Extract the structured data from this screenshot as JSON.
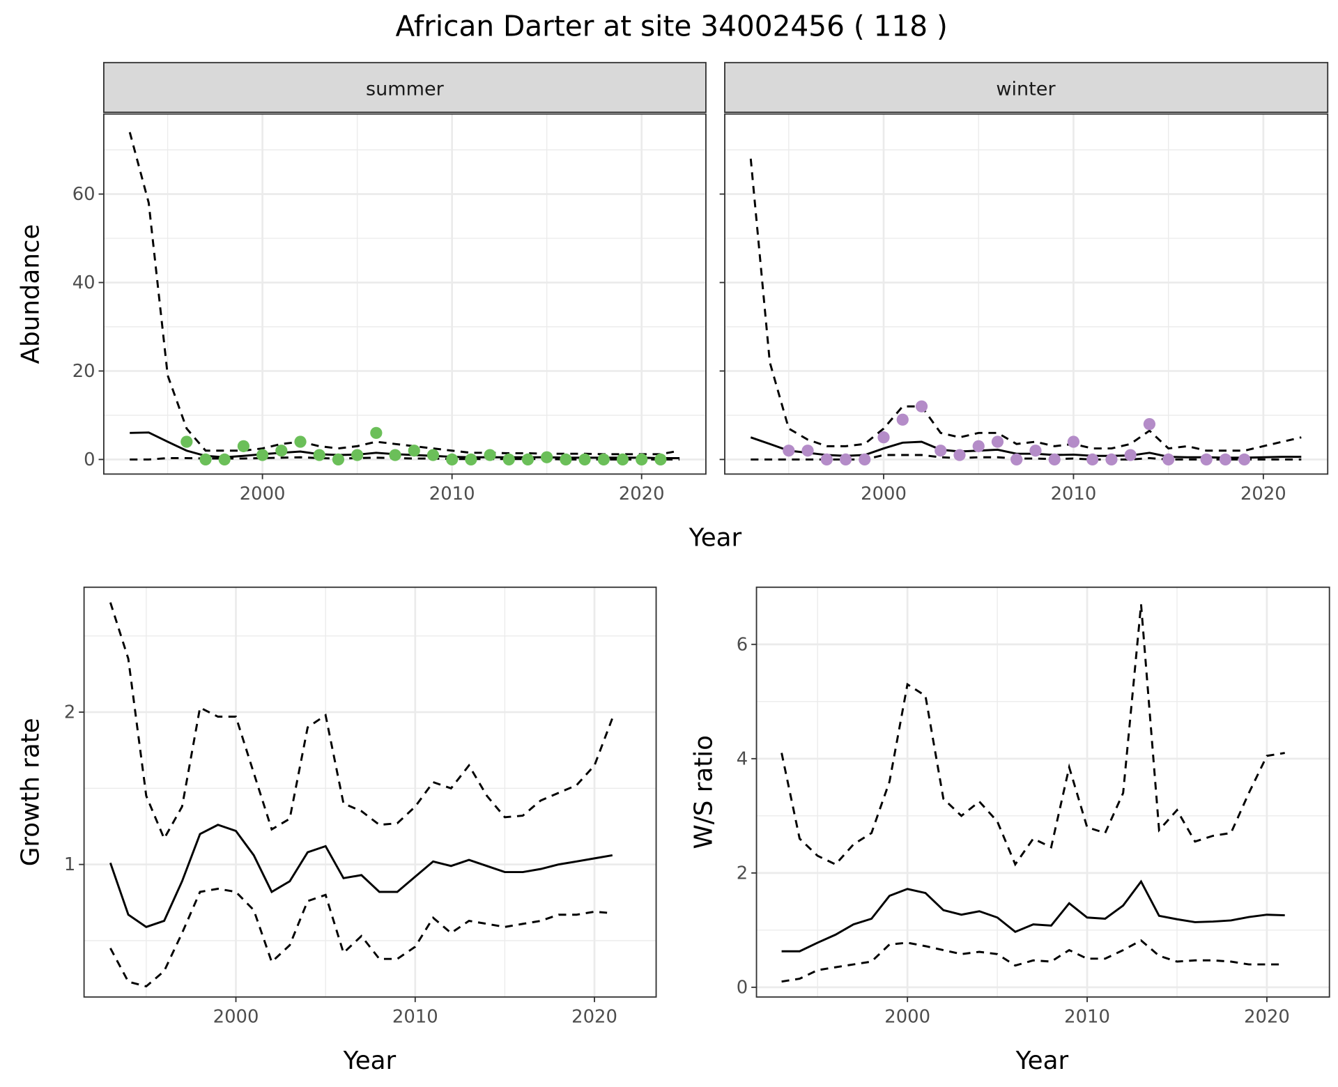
{
  "title": "African Darter at site 34002456 ( 118 )",
  "shared_xlabel": "Year",
  "colors": {
    "summer_points": "#6BBF59",
    "winter_points": "#B48CC8",
    "lines": "#000000",
    "strip_bg": "#D9D9D9",
    "grid": "#EBEBEB"
  },
  "chart_data": [
    {
      "type": "line+scatter",
      "facet": "summer",
      "ylabel": "Abundance",
      "xlabel": "",
      "xlim": [
        1991.63,
        2023.39
      ],
      "ylim": [
        -3.3,
        78.1
      ],
      "xticks": [
        2000,
        2010,
        2020
      ],
      "yticks": [
        0,
        20,
        40,
        60
      ],
      "grid": true,
      "years": [
        1993,
        1994,
        1995,
        1996,
        1997,
        1998,
        1999,
        2000,
        2001,
        2002,
        2003,
        2004,
        2005,
        2006,
        2007,
        2008,
        2009,
        2010,
        2011,
        2012,
        2013,
        2014,
        2015,
        2016,
        2017,
        2018,
        2019,
        2020,
        2021,
        2022
      ],
      "mean": [
        6,
        6.1,
        4,
        2,
        0.8,
        0.5,
        0.8,
        1.2,
        1.5,
        1.8,
        1.2,
        1,
        1.1,
        1.5,
        1.2,
        1,
        0.8,
        0.6,
        0.5,
        0.5,
        0.5,
        0.5,
        0.5,
        0.4,
        0.4,
        0.4,
        0.4,
        0.4,
        0.3,
        0.3
      ],
      "upper": [
        74,
        58,
        19,
        7,
        2,
        2,
        2,
        2.5,
        3.5,
        4,
        3,
        2.5,
        3,
        4,
        3.5,
        3,
        2.5,
        2,
        1.5,
        1.5,
        1.4,
        1.4,
        1.3,
        1.3,
        1.3,
        1.2,
        1.2,
        1.2,
        1.2,
        2
      ],
      "lower": [
        0,
        0,
        0.3,
        0.3,
        0.2,
        0.2,
        0.2,
        0.3,
        0.4,
        0.5,
        0.3,
        0.2,
        0.3,
        0.4,
        0.3,
        0.2,
        0.2,
        0.1,
        0.1,
        0.1,
        0.1,
        0.1,
        0.1,
        0,
        0,
        0,
        0,
        0,
        0,
        0
      ],
      "points": {
        "years": [
          1996,
          1997,
          1998,
          1999,
          2000,
          2001,
          2002,
          2003,
          2004,
          2005,
          2006,
          2007,
          2008,
          2009,
          2010,
          2011,
          2012,
          2013,
          2014,
          2015,
          2016,
          2017,
          2018,
          2019,
          2020,
          2021
        ],
        "values": [
          4,
          0,
          0,
          3,
          1,
          2,
          4,
          1,
          0,
          1,
          6,
          1,
          2,
          1,
          0,
          0,
          1,
          0,
          0,
          0.5,
          0,
          0,
          0,
          0,
          0,
          0
        ]
      }
    },
    {
      "type": "line+scatter",
      "facet": "winter",
      "ylabel": "",
      "xlabel": "",
      "xlim": [
        1991.63,
        2023.39
      ],
      "ylim": [
        -3.3,
        78.1
      ],
      "xticks": [
        2000,
        2010,
        2020
      ],
      "yticks": [
        0,
        20,
        40,
        60
      ],
      "grid": true,
      "years": [
        1993,
        1994,
        1995,
        1996,
        1997,
        1998,
        1999,
        2000,
        2001,
        2002,
        2003,
        2004,
        2005,
        2006,
        2007,
        2008,
        2009,
        2010,
        2011,
        2012,
        2013,
        2014,
        2015,
        2016,
        2017,
        2018,
        2019,
        2020,
        2021,
        2022
      ],
      "mean": [
        5,
        3.5,
        2,
        1.5,
        1,
        0.8,
        1,
        2.5,
        3.8,
        4,
        2.2,
        1.8,
        2,
        2.2,
        1.3,
        1.3,
        1,
        1.1,
        0.8,
        0.8,
        0.9,
        1.5,
        0.6,
        0.5,
        0.5,
        0.4,
        0.4,
        0.5,
        0.6,
        0.6
      ],
      "upper": [
        68,
        22,
        7,
        4.5,
        3,
        3,
        3.5,
        7,
        12,
        12,
        6,
        5,
        6,
        6,
        3.5,
        4,
        3,
        3.5,
        2.5,
        2.5,
        3.5,
        6.5,
        2.5,
        3,
        2,
        2,
        2,
        3,
        4,
        5
      ],
      "lower": [
        0,
        0,
        0,
        0,
        0,
        0,
        0,
        1,
        1,
        1,
        0.5,
        0.3,
        0.5,
        0.5,
        0.2,
        0.2,
        0.1,
        0.2,
        0,
        0,
        0,
        0.3,
        0,
        0,
        0,
        0,
        0,
        0,
        0,
        0
      ],
      "points": {
        "years": [
          1995,
          1996,
          1997,
          1998,
          1999,
          2000,
          2001,
          2002,
          2003,
          2004,
          2005,
          2006,
          2007,
          2008,
          2009,
          2010,
          2011,
          2012,
          2013,
          2014,
          2015,
          2017,
          2018,
          2019
        ],
        "values": [
          2,
          2,
          0,
          0,
          0,
          5,
          9,
          12,
          2,
          1,
          3,
          4,
          0,
          2,
          0,
          4,
          0,
          0,
          1,
          8,
          0,
          0,
          0,
          0
        ]
      }
    },
    {
      "type": "line",
      "ylabel": "Growth rate",
      "xlabel": "Year",
      "xlim": [
        1991.53,
        2023.44
      ],
      "ylim": [
        0.13,
        2.82
      ],
      "xticks": [
        2000,
        2010,
        2020
      ],
      "yticks": [
        1,
        2
      ],
      "grid": true,
      "years": [
        1993,
        1994,
        1995,
        1996,
        1997,
        1998,
        1999,
        2000,
        2001,
        2002,
        2003,
        2004,
        2005,
        2006,
        2007,
        2008,
        2009,
        2010,
        2011,
        2012,
        2013,
        2014,
        2015,
        2016,
        2017,
        2018,
        2019,
        2020,
        2021
      ],
      "mean": [
        1.01,
        0.67,
        0.59,
        0.63,
        0.89,
        1.2,
        1.26,
        1.22,
        1.06,
        0.82,
        0.89,
        1.08,
        1.12,
        0.91,
        0.93,
        0.82,
        0.82,
        0.92,
        1.02,
        0.99,
        1.03,
        0.99,
        0.95,
        0.95,
        0.97,
        1.0,
        1.02,
        1.04,
        1.06
      ],
      "upper": [
        2.72,
        2.35,
        1.45,
        1.17,
        1.38,
        2.03,
        1.97,
        1.97,
        1.6,
        1.23,
        1.3,
        1.9,
        1.98,
        1.4,
        1.35,
        1.26,
        1.27,
        1.38,
        1.54,
        1.5,
        1.65,
        1.45,
        1.31,
        1.32,
        1.42,
        1.47,
        1.52,
        1.65,
        1.96
      ],
      "lower": [
        0.45,
        0.23,
        0.2,
        0.3,
        0.55,
        0.82,
        0.84,
        0.82,
        0.7,
        0.36,
        0.47,
        0.76,
        0.8,
        0.42,
        0.53,
        0.38,
        0.38,
        0.46,
        0.65,
        0.55,
        0.63,
        0.61,
        0.59,
        0.61,
        0.63,
        0.67,
        0.67,
        0.69,
        0.68
      ]
    },
    {
      "type": "line",
      "ylabel": "W/S ratio",
      "xlabel": "Year",
      "xlim": [
        1991.6,
        2023.48
      ],
      "ylim": [
        -0.17,
        7.0
      ],
      "xticks": [
        2000,
        2010,
        2020
      ],
      "yticks": [
        0,
        2,
        4,
        6
      ],
      "grid": true,
      "years": [
        1993,
        1994,
        1995,
        1996,
        1997,
        1998,
        1999,
        2000,
        2001,
        2002,
        2003,
        2004,
        2005,
        2006,
        2007,
        2008,
        2009,
        2010,
        2011,
        2012,
        2013,
        2014,
        2015,
        2016,
        2017,
        2018,
        2019,
        2020,
        2021
      ],
      "mean": [
        0.63,
        0.63,
        0.78,
        0.92,
        1.1,
        1.2,
        1.6,
        1.72,
        1.65,
        1.35,
        1.27,
        1.33,
        1.22,
        0.97,
        1.1,
        1.08,
        1.47,
        1.22,
        1.2,
        1.43,
        1.85,
        1.25,
        1.19,
        1.14,
        1.15,
        1.17,
        1.23,
        1.27,
        1.26
      ],
      "upper": [
        4.1,
        2.6,
        2.3,
        2.15,
        2.5,
        2.7,
        3.6,
        5.3,
        5.1,
        3.3,
        3.0,
        3.25,
        2.9,
        2.15,
        2.6,
        2.45,
        3.85,
        2.8,
        2.7,
        3.4,
        6.7,
        2.75,
        3.1,
        2.55,
        2.65,
        2.7,
        3.4,
        4.05,
        4.1
      ],
      "lower": [
        0.1,
        0.15,
        0.3,
        0.35,
        0.4,
        0.45,
        0.75,
        0.78,
        0.72,
        0.65,
        0.58,
        0.62,
        0.58,
        0.38,
        0.47,
        0.45,
        0.65,
        0.5,
        0.5,
        0.65,
        0.82,
        0.55,
        0.45,
        0.47,
        0.47,
        0.45,
        0.4,
        0.4,
        0.4
      ]
    }
  ]
}
